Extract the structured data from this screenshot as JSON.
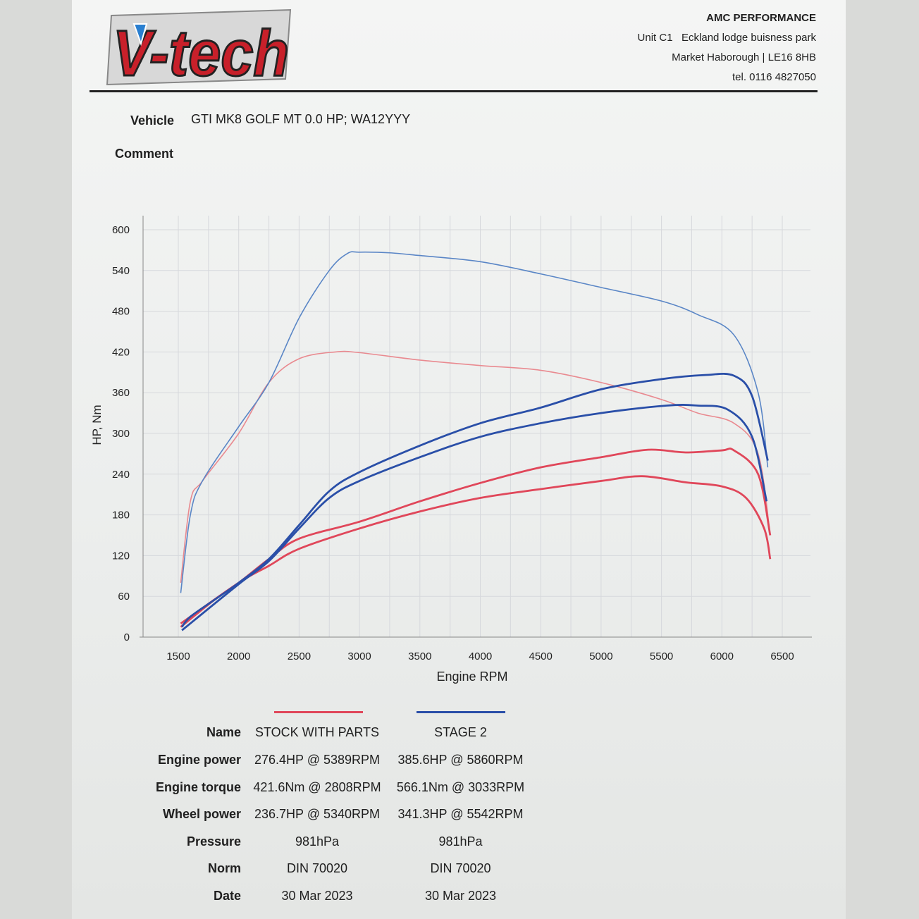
{
  "logo": {
    "text": "V-tech"
  },
  "company": {
    "name": "AMC PERFORMANCE",
    "address1": "Unit C1   Eckland lodge buisness park",
    "address2": "Market Haborough | LE16 8HB",
    "phone": "tel. 0116 4827050"
  },
  "vehicle": {
    "label": "Vehicle",
    "value": "GTI MK8 GOLF MT 0.0 HP; WA12YYY"
  },
  "comment": {
    "label": "Comment"
  },
  "chart_data": {
    "type": "line",
    "xlabel": "Engine RPM",
    "ylabel": "HP, Nm",
    "xlim": [
      1500,
      6500
    ],
    "ylim": [
      0,
      600
    ],
    "xticks": [
      1500,
      2000,
      2500,
      3000,
      3500,
      4000,
      4500,
      5000,
      5500,
      6000,
      6500
    ],
    "yticks": [
      0,
      60,
      120,
      180,
      240,
      300,
      360,
      420,
      480,
      540,
      600
    ],
    "grid": true,
    "colors": {
      "stock": "#e0475a",
      "stock_torque": "#e98a90",
      "stage2": "#2a4fa8",
      "stage2_torque": "#5a86c6"
    },
    "series": [
      {
        "run": "STOCK WITH PARTS",
        "kind": "Engine torque",
        "color": "#e98a90",
        "points": [
          [
            1520,
            80
          ],
          [
            1600,
            200
          ],
          [
            1700,
            230
          ],
          [
            2000,
            300
          ],
          [
            2250,
            375
          ],
          [
            2500,
            410
          ],
          [
            2800,
            420
          ],
          [
            3000,
            419
          ],
          [
            3500,
            408
          ],
          [
            4000,
            400
          ],
          [
            4500,
            393
          ],
          [
            5000,
            375
          ],
          [
            5500,
            350
          ],
          [
            5800,
            330
          ],
          [
            6100,
            315
          ],
          [
            6300,
            270
          ],
          [
            6400,
            150
          ]
        ]
      },
      {
        "run": "STAGE 2",
        "kind": "Engine torque",
        "color": "#5a86c6",
        "points": [
          [
            1520,
            65
          ],
          [
            1600,
            180
          ],
          [
            1700,
            230
          ],
          [
            2000,
            310
          ],
          [
            2250,
            375
          ],
          [
            2500,
            470
          ],
          [
            2750,
            540
          ],
          [
            2900,
            565
          ],
          [
            3000,
            567
          ],
          [
            3250,
            566
          ],
          [
            3500,
            562
          ],
          [
            4000,
            553
          ],
          [
            4500,
            535
          ],
          [
            5000,
            515
          ],
          [
            5500,
            495
          ],
          [
            5800,
            475
          ],
          [
            6100,
            445
          ],
          [
            6300,
            360
          ],
          [
            6380,
            250
          ]
        ]
      },
      {
        "run": "STOCK WITH PARTS",
        "kind": "Engine power",
        "color": "#e0475a",
        "points": [
          [
            1520,
            15
          ],
          [
            1800,
            55
          ],
          [
            2000,
            80
          ],
          [
            2250,
            115
          ],
          [
            2500,
            145
          ],
          [
            3000,
            170
          ],
          [
            3500,
            200
          ],
          [
            4000,
            227
          ],
          [
            4500,
            250
          ],
          [
            5000,
            265
          ],
          [
            5389,
            276
          ],
          [
            5700,
            272
          ],
          [
            6000,
            275
          ],
          [
            6100,
            275
          ],
          [
            6300,
            240
          ],
          [
            6400,
            150
          ]
        ]
      },
      {
        "run": "STOCK WITH PARTS",
        "kind": "Wheel power",
        "color": "#e0475a",
        "points": [
          [
            1520,
            20
          ],
          [
            2000,
            80
          ],
          [
            2250,
            105
          ],
          [
            2500,
            130
          ],
          [
            3000,
            160
          ],
          [
            3500,
            185
          ],
          [
            4000,
            205
          ],
          [
            4500,
            218
          ],
          [
            5000,
            230
          ],
          [
            5340,
            237
          ],
          [
            5700,
            228
          ],
          [
            6000,
            222
          ],
          [
            6200,
            205
          ],
          [
            6350,
            160
          ],
          [
            6400,
            115
          ]
        ]
      },
      {
        "run": "STAGE 2",
        "kind": "Engine power",
        "color": "#2a4fa8",
        "points": [
          [
            1530,
            15
          ],
          [
            1600,
            30
          ],
          [
            1800,
            55
          ],
          [
            2000,
            80
          ],
          [
            2250,
            115
          ],
          [
            2500,
            165
          ],
          [
            2750,
            215
          ],
          [
            3000,
            243
          ],
          [
            3500,
            282
          ],
          [
            4000,
            315
          ],
          [
            4500,
            338
          ],
          [
            5000,
            365
          ],
          [
            5500,
            380
          ],
          [
            5860,
            386
          ],
          [
            6100,
            385
          ],
          [
            6250,
            355
          ],
          [
            6380,
            260
          ]
        ]
      },
      {
        "run": "STAGE 2",
        "kind": "Wheel power",
        "color": "#2a4fa8",
        "points": [
          [
            1530,
            10
          ],
          [
            2000,
            78
          ],
          [
            2250,
            112
          ],
          [
            2500,
            160
          ],
          [
            2750,
            205
          ],
          [
            3000,
            230
          ],
          [
            3500,
            265
          ],
          [
            4000,
            295
          ],
          [
            4500,
            315
          ],
          [
            5000,
            330
          ],
          [
            5542,
            341
          ],
          [
            5800,
            341
          ],
          [
            6050,
            335
          ],
          [
            6250,
            295
          ],
          [
            6370,
            200
          ]
        ]
      }
    ]
  },
  "results": {
    "headers": {
      "label": "Name",
      "stock": "STOCK WITH PARTS",
      "stage2": "STAGE 2"
    },
    "rows": [
      {
        "label": "Engine power",
        "stock": "276.4HP @ 5389RPM",
        "stage2": "385.6HP @ 5860RPM"
      },
      {
        "label": "Engine torque",
        "stock": "421.6Nm @ 2808RPM",
        "stage2": "566.1Nm @ 3033RPM"
      },
      {
        "label": "Wheel power",
        "stock": "236.7HP @ 5340RPM",
        "stage2": "341.3HP @ 5542RPM"
      },
      {
        "label": "Pressure",
        "stock": "981hPa",
        "stage2": "981hPa"
      },
      {
        "label": "Norm",
        "stock": "DIN 70020",
        "stage2": "DIN 70020"
      },
      {
        "label": "Date",
        "stock": "30 Mar 2023",
        "stage2": "30 Mar 2023"
      }
    ]
  }
}
